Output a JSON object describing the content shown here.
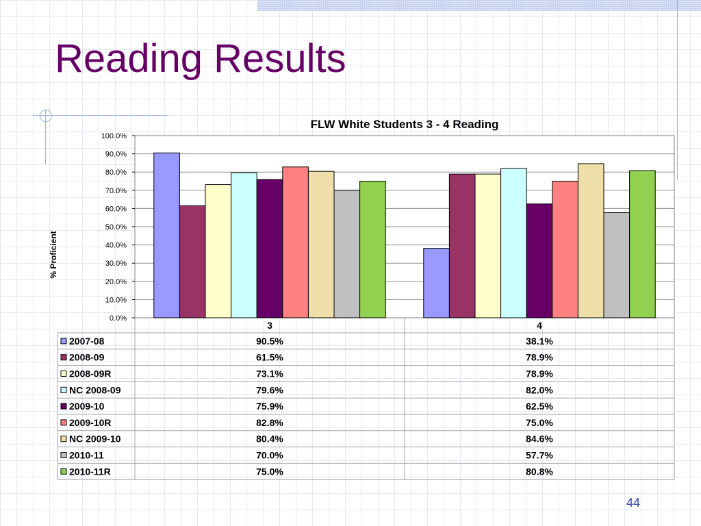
{
  "slide": {
    "title": "Reading Results",
    "page_number": "44"
  },
  "colors": {
    "title": "#660066",
    "page_number": "#3344aa"
  },
  "chart_data": {
    "type": "bar",
    "title": "FLW White Students 3 - 4 Reading",
    "xlabel": "",
    "ylabel": "% Proficient",
    "ylim": [
      0,
      100
    ],
    "yticks": [
      "0.0%",
      "10.0%",
      "20.0%",
      "30.0%",
      "40.0%",
      "50.0%",
      "60.0%",
      "70.0%",
      "80.0%",
      "90.0%",
      "100.0%"
    ],
    "grid": true,
    "legend": "data-table",
    "categories": [
      "3",
      "4"
    ],
    "series": [
      {
        "name": "2007-08",
        "color": "#9999ff",
        "values": [
          90.5,
          38.1
        ],
        "labels": [
          "90.5%",
          "38.1%"
        ]
      },
      {
        "name": "2008-09",
        "color": "#993366",
        "values": [
          61.5,
          78.9
        ],
        "labels": [
          "61.5%",
          "78.9%"
        ]
      },
      {
        "name": "2008-09R",
        "color": "#ffffcc",
        "values": [
          73.1,
          78.9
        ],
        "labels": [
          "73.1%",
          "78.9%"
        ]
      },
      {
        "name": "NC 2008-09",
        "color": "#ccffff",
        "values": [
          79.6,
          82.0
        ],
        "labels": [
          "79.6%",
          "82.0%"
        ]
      },
      {
        "name": "2009-10",
        "color": "#660066",
        "values": [
          75.9,
          62.5
        ],
        "labels": [
          "75.9%",
          "62.5%"
        ]
      },
      {
        "name": "2009-10R",
        "color": "#ff8080",
        "values": [
          82.8,
          75.0
        ],
        "labels": [
          "82.8%",
          "75.0%"
        ]
      },
      {
        "name": "NC 2009-10",
        "color": "#eedfa8",
        "values": [
          80.4,
          84.6
        ],
        "labels": [
          "80.4%",
          "84.6%"
        ]
      },
      {
        "name": "2010-11",
        "color": "#c0c0c0",
        "values": [
          70.0,
          57.7
        ],
        "labels": [
          "70.0%",
          "57.7%"
        ]
      },
      {
        "name": "2010-11R",
        "color": "#92d050",
        "values": [
          75.0,
          80.8
        ],
        "labels": [
          "75.0%",
          "80.8%"
        ]
      }
    ]
  }
}
